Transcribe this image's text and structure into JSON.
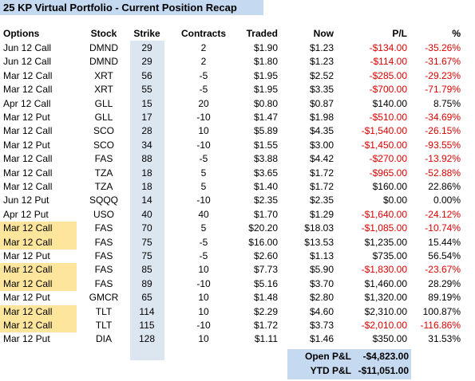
{
  "title": "25 KP Virtual Portfolio - Current Position Recap",
  "table": {
    "header": [
      "Options",
      "Stock",
      "Strike",
      "Contracts",
      "Traded",
      "Now",
      "P/L",
      "%"
    ],
    "rows": [
      [
        "Jun 12 Call",
        "DMND",
        "29",
        "2",
        "$1.90",
        "$1.23",
        "-$134.00",
        "-35.26%"
      ],
      [
        "Jun 12 Call",
        "DMND",
        "29",
        "2",
        "$1.80",
        "$1.23",
        "-$114.00",
        "-31.67%"
      ],
      [
        "Mar 12 Call",
        "XRT",
        "56",
        "-5",
        "$1.95",
        "$2.52",
        "-$285.00",
        "-29.23%"
      ],
      [
        "Mar 12 Call",
        "XRT",
        "55",
        "-5",
        "$1.95",
        "$3.35",
        "-$700.00",
        "-71.79%"
      ],
      [
        "Apr 12 Call",
        "GLL",
        "15",
        "20",
        "$0.80",
        "$0.87",
        "$140.00",
        "8.75%"
      ],
      [
        "Mar 12 Put",
        "GLL",
        "17",
        "-10",
        "$1.47",
        "$1.98",
        "-$510.00",
        "-34.69%"
      ],
      [
        "Mar 12 Call",
        "SCO",
        "28",
        "10",
        "$5.89",
        "$4.35",
        "-$1,540.00",
        "-26.15%"
      ],
      [
        "Mar 12 Put",
        "SCO",
        "34",
        "-10",
        "$1.55",
        "$3.00",
        "-$1,450.00",
        "-93.55%"
      ],
      [
        "Mar 12 Call",
        "FAS",
        "88",
        "-5",
        "$3.88",
        "$4.42",
        "-$270.00",
        "-13.92%"
      ],
      [
        "Mar 12 Call",
        "TZA",
        "18",
        "5",
        "$3.65",
        "$1.72",
        "-$965.00",
        "-52.88%"
      ],
      [
        "Mar 12 Call",
        "TZA",
        "18",
        "5",
        "$1.40",
        "$1.72",
        "$160.00",
        "22.86%"
      ],
      [
        "Jun 12 Put",
        "SQQQ",
        "14",
        "-10",
        "$2.35",
        "$2.35",
        "$0.00",
        "0.00%"
      ],
      [
        "Apr 12 Put",
        "USO",
        "40",
        "40",
        "$1.70",
        "$1.29",
        "-$1,640.00",
        "-24.12%"
      ],
      [
        "Mar 12 Call",
        "FAS",
        "70",
        "5",
        "$20.20",
        "$18.03",
        "-$1,085.00",
        "-10.74%"
      ],
      [
        "Mar 12 Call",
        "FAS",
        "75",
        "-5",
        "$16.00",
        "$13.53",
        "$1,235.00",
        "15.44%"
      ],
      [
        "Mar 12 Put",
        "FAS",
        "75",
        "-5",
        "$2.60",
        "$1.13",
        "$735.00",
        "56.54%"
      ],
      [
        "Mar 12 Call",
        "FAS",
        "85",
        "10",
        "$7.73",
        "$5.90",
        "-$1,830.00",
        "-23.67%"
      ],
      [
        "Mar 12 Call",
        "FAS",
        "89",
        "-10",
        "$5.16",
        "$3.70",
        "$1,460.00",
        "28.29%"
      ],
      [
        "Mar 12 Put",
        "GMCR",
        "65",
        "10",
        "$1.48",
        "$2.80",
        "$1,320.00",
        "89.19%"
      ],
      [
        "Mar 12 Call",
        "TLT",
        "114",
        "10",
        "$2.29",
        "$4.60",
        "$2,310.00",
        "100.87%"
      ],
      [
        "Mar 12 Call",
        "TLT",
        "115",
        "-10",
        "$1.72",
        "$3.73",
        "-$2,010.00",
        "-116.86%"
      ],
      [
        "Mar 12 Put",
        "DIA",
        "128",
        "10",
        "$1.11",
        "$1.46",
        "$350.00",
        "31.53%"
      ]
    ],
    "highlighted_rows": [
      13,
      14,
      16,
      17,
      19,
      20
    ],
    "highlight_color": "#fde69c",
    "negative_color": "#e00000"
  },
  "totals": [
    {
      "label": "Open P&L",
      "value": "-$4,823.00"
    },
    {
      "label": "YTD P&L",
      "value": "-$11,051.00"
    }
  ]
}
